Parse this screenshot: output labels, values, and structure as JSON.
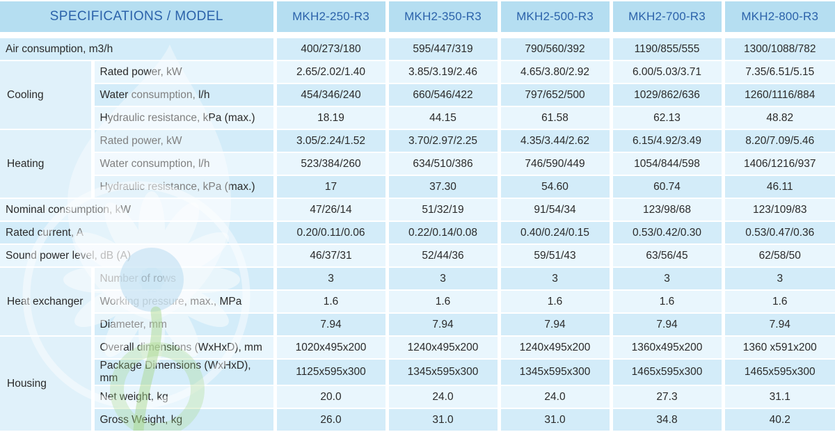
{
  "colors": {
    "header_bg": "#b5def1",
    "header_text": "#2b62aa",
    "row_dark": "#d3ecf9",
    "row_light": "#e9f6fd",
    "group_cell_bg": "#e0f1fa",
    "body_text": "#2a2a2a",
    "watermark_green": "#a6d788",
    "watermark_blue": "#b9ddf0"
  },
  "watermark_icon": "eco-water-drop-flower-logo",
  "chart_data": {
    "type": "table",
    "title": "SPECIFICATIONS / MODEL",
    "columns": [
      "MKH2-250-R3",
      "MKH2-350-R3",
      "MKH2-500-R3",
      "MKH2-700-R3",
      "MKH2-800-R3"
    ],
    "rows": [
      {
        "label": "Air consumption, m3/h",
        "full": true,
        "values": [
          "400/273/180",
          "595/447/319",
          "790/560/392",
          "1190/855/555",
          "1300/1088/782"
        ]
      },
      {
        "group": "Cooling",
        "rowspan": 3,
        "label": "Rated power, kW",
        "values": [
          "2.65/2.02/1.40",
          "3.85/3.19/2.46",
          "4.65/3.80/2.92",
          "6.00/5.03/3.71",
          "7.35/6.51/5.15"
        ]
      },
      {
        "label": "Water consumption, l/h",
        "values": [
          "454/346/240",
          "660/546/422",
          "797/652/500",
          "1029/862/636",
          "1260/1116/884"
        ]
      },
      {
        "label": "Hydraulic resistance, kPa (max.)",
        "values": [
          "18.19",
          "44.15",
          "61.58",
          "62.13",
          "48.82"
        ]
      },
      {
        "group": "Heating",
        "rowspan": 3,
        "label": "Rated power, kW",
        "values": [
          "3.05/2.24/1.52",
          "3.70/2.97/2.25",
          "4.35/3.44/2.62",
          "6.15/4.92/3.49",
          "8.20/7.09/5.46"
        ]
      },
      {
        "label": "Water consumption, l/h",
        "values": [
          "523/384/260",
          "634/510/386",
          "746/590/449",
          "1054/844/598",
          "1406/1216/937"
        ]
      },
      {
        "label": "Hydraulic resistance, kPa (max.)",
        "values": [
          "17",
          "37.30",
          "54.60",
          "60.74",
          "46.11"
        ]
      },
      {
        "label": "Nominal consumption, kW",
        "full": true,
        "values": [
          "47/26/14",
          "51/32/19",
          "91/54/34",
          "123/98/68",
          "123/109/83"
        ]
      },
      {
        "label": "Rated current, A",
        "full": true,
        "values": [
          "0.20/0.11/0.06",
          "0.22/0.14/0.08",
          "0.40/0.24/0.15",
          "0.53/0.42/0.30",
          "0.53/0.47/0.36"
        ]
      },
      {
        "label": "Sound power level, dB (A)",
        "full": true,
        "values": [
          "46/37/31",
          "52/44/36",
          "59/51/43",
          "63/56/45",
          "62/58/50"
        ]
      },
      {
        "group": "Heat exchanger",
        "rowspan": 3,
        "label": "Number of rows",
        "values": [
          "3",
          "3",
          "3",
          "3",
          "3"
        ]
      },
      {
        "label": "Working pressure, max., MPa",
        "values": [
          "1.6",
          "1.6",
          "1.6",
          "1.6",
          "1.6"
        ]
      },
      {
        "label": "Diameter, mm",
        "values": [
          "7.94",
          "7.94",
          "7.94",
          "7.94",
          "7.94"
        ]
      },
      {
        "group": "Housing",
        "rowspan": 4,
        "label": "Overall dimensions (WxHxD), mm",
        "values": [
          "1020x495x200",
          "1240x495x200",
          "1240x495x200",
          "1360x495x200",
          "1360 x591x200"
        ]
      },
      {
        "label": "Package Dimensions (WxHxD), mm",
        "values": [
          "1125x595x300",
          "1345x595x300",
          "1345x595x300",
          "1465x595x300",
          "1465x595x300"
        ]
      },
      {
        "label": "Net weight, kg",
        "values": [
          "20.0",
          "24.0",
          "24.0",
          "27.3",
          "31.1"
        ]
      },
      {
        "label": "Gross Weight, kg",
        "values": [
          "26.0",
          "31.0",
          "31.0",
          "34.8",
          "40.2"
        ]
      }
    ]
  }
}
